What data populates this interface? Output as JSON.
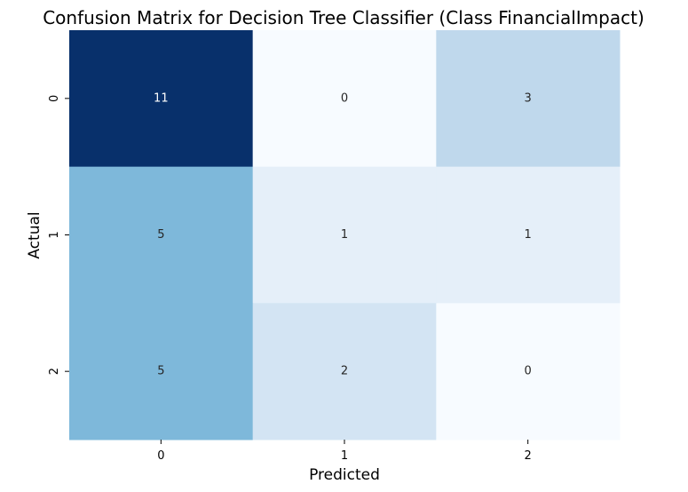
{
  "chart_data": {
    "type": "heatmap",
    "title": "Confusion Matrix for Decision Tree Classifier (Class FinancialImpact)",
    "xlabel": "Predicted",
    "ylabel": "Actual",
    "x_categories": [
      "0",
      "1",
      "2"
    ],
    "y_categories": [
      "0",
      "1",
      "2"
    ],
    "values": [
      [
        11,
        0,
        3
      ],
      [
        5,
        1,
        1
      ],
      [
        5,
        2,
        0
      ]
    ],
    "value_range": [
      0,
      11
    ],
    "colormap": "Blues",
    "colorbar": false,
    "annotations": true
  }
}
